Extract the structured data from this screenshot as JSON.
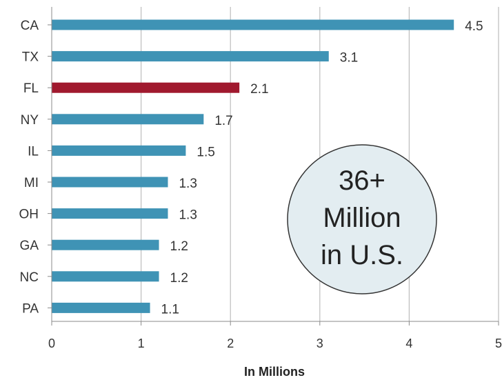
{
  "chart_data": {
    "type": "bar",
    "orientation": "horizontal",
    "categories": [
      "CA",
      "TX",
      "FL",
      "NY",
      "IL",
      "MI",
      "OH",
      "GA",
      "NC",
      "PA"
    ],
    "values": [
      4.5,
      3.1,
      2.1,
      1.7,
      1.5,
      1.3,
      1.3,
      1.2,
      1.2,
      1.1
    ],
    "value_labels": [
      "4.5",
      "3.1",
      "2.1",
      "1.7",
      "1.5",
      "1.3",
      "1.3",
      "1.2",
      "1.2",
      "1.1"
    ],
    "highlight_category": "FL",
    "xlabel": "In Millions",
    "xlim": [
      0,
      5
    ],
    "xticks": [
      "0",
      "1",
      "2",
      "3",
      "4",
      "5"
    ],
    "grid": "vertical",
    "colors": {
      "bar": "#3f93b5",
      "highlight": "#a0192e",
      "grid": "#bcbcbc"
    }
  },
  "callout": {
    "line1": "36+",
    "line2": "Million",
    "line3": "in U.S."
  }
}
